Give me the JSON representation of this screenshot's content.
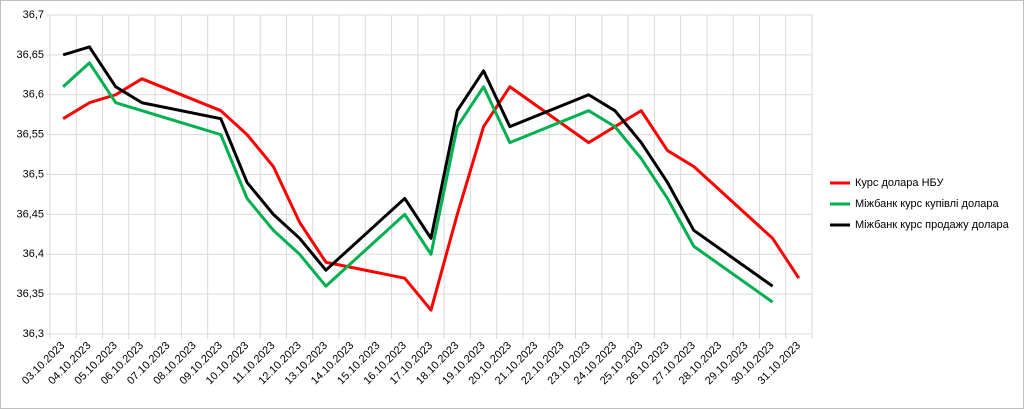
{
  "chart_data": {
    "type": "line",
    "categories": [
      "03.10.2023",
      "04.10.2023",
      "05.10.2023",
      "06.10.2023",
      "07.10.2023",
      "08.10.2023",
      "09.10.2023",
      "10.10.2023",
      "11.10.2023",
      "12.10.2023",
      "13.10.2023",
      "14.10.2023",
      "15.10.2023",
      "16.10.2023",
      "17.10.2023",
      "18.10.2023",
      "19.10.2023",
      "20.10.2023",
      "21.10.2023",
      "22.10.2023",
      "23.10.2023",
      "24.10.2023",
      "25.10.2023",
      "26.10.2023",
      "27.10.2023",
      "28.10.2023",
      "29.10.2023",
      "30.10.2023",
      "31.10.2023"
    ],
    "series": [
      {
        "name": "Курс долара НБУ",
        "color": "#ff0000",
        "x": [
          "03.10.2023",
          "04.10.2023",
          "05.10.2023",
          "06.10.2023",
          "09.10.2023",
          "10.10.2023",
          "11.10.2023",
          "12.10.2023",
          "13.10.2023",
          "16.10.2023",
          "17.10.2023",
          "18.10.2023",
          "19.10.2023",
          "20.10.2023",
          "23.10.2023",
          "25.10.2023",
          "26.10.2023",
          "27.10.2023",
          "30.10.2023",
          "31.10.2023"
        ],
        "values": [
          36.57,
          36.59,
          36.6,
          36.62,
          36.58,
          36.55,
          36.51,
          36.44,
          36.39,
          36.37,
          36.33,
          36.45,
          36.56,
          36.61,
          36.54,
          36.58,
          36.53,
          36.51,
          36.42,
          36.37
        ]
      },
      {
        "name": "Міжбанк курс купівлі долара",
        "color": "#00b050",
        "x": [
          "03.10.2023",
          "04.10.2023",
          "05.10.2023",
          "06.10.2023",
          "09.10.2023",
          "10.10.2023",
          "11.10.2023",
          "12.10.2023",
          "13.10.2023",
          "16.10.2023",
          "17.10.2023",
          "18.10.2023",
          "19.10.2023",
          "20.10.2023",
          "23.10.2023",
          "24.10.2023",
          "25.10.2023",
          "26.10.2023",
          "27.10.2023",
          "30.10.2023"
        ],
        "values": [
          36.61,
          36.64,
          36.59,
          36.58,
          36.55,
          36.47,
          36.43,
          36.4,
          36.36,
          36.45,
          36.4,
          36.56,
          36.61,
          36.54,
          36.58,
          36.56,
          36.52,
          36.47,
          36.41,
          36.34
        ]
      },
      {
        "name": "Міжбанк курс продажу долара",
        "color": "#000000",
        "x": [
          "03.10.2023",
          "04.10.2023",
          "05.10.2023",
          "06.10.2023",
          "09.10.2023",
          "10.10.2023",
          "11.10.2023",
          "12.10.2023",
          "13.10.2023",
          "16.10.2023",
          "17.10.2023",
          "18.10.2023",
          "19.10.2023",
          "20.10.2023",
          "23.10.2023",
          "24.10.2023",
          "25.10.2023",
          "26.10.2023",
          "27.10.2023",
          "30.10.2023"
        ],
        "values": [
          36.65,
          36.66,
          36.61,
          36.59,
          36.57,
          36.49,
          36.45,
          36.42,
          36.38,
          36.47,
          36.42,
          36.58,
          36.63,
          36.56,
          36.6,
          36.58,
          36.54,
          36.49,
          36.43,
          36.36
        ]
      }
    ],
    "ylim": [
      36.3,
      36.7
    ],
    "yticks": [
      {
        "value": 36.3,
        "label": "36,3"
      },
      {
        "value": 36.35,
        "label": "36,35"
      },
      {
        "value": 36.4,
        "label": "36,4"
      },
      {
        "value": 36.45,
        "label": "36,45"
      },
      {
        "value": 36.5,
        "label": "36,5"
      },
      {
        "value": 36.55,
        "label": "36,55"
      },
      {
        "value": 36.6,
        "label": "36,6"
      },
      {
        "value": 36.65,
        "label": "36,65"
      },
      {
        "value": 36.7,
        "label": "36,7"
      }
    ],
    "grid": true,
    "legend": "right"
  }
}
